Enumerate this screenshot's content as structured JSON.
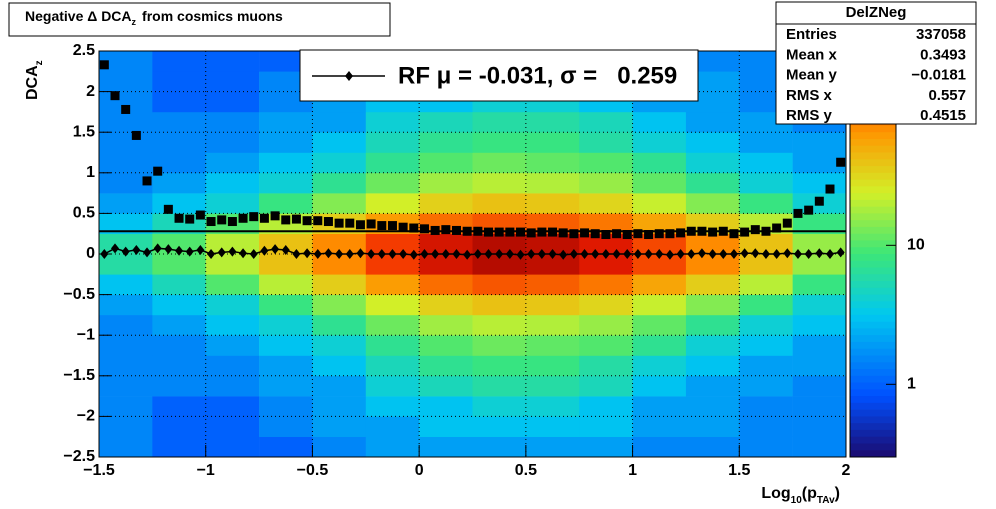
{
  "chart_data": {
    "type": "heatmap",
    "title": {
      "text": "Negative Δ DCA",
      "sub": "z",
      "rest": "from cosmics muons"
    },
    "ylabel": [
      {
        "text": "DCA"
      },
      {
        "text": "z",
        "sub": true
      }
    ],
    "xlabel": [
      {
        "text": "Log"
      },
      {
        "text": "10",
        "sub": true
      },
      {
        "text": "(p"
      },
      {
        "text": "TAv",
        "sub": true
      },
      {
        "text": ")"
      }
    ],
    "xlim": [
      -1.5,
      2
    ],
    "ylim": [
      -2.5,
      2.5
    ],
    "xticks": [
      {
        "value": -1.5,
        "label": "−1.5"
      },
      {
        "value": -1,
        "label": "−1"
      },
      {
        "value": -0.5,
        "label": "−0.5"
      },
      0,
      0.5,
      1,
      1.5,
      2
    ],
    "yticks": [
      {
        "value": -2.5,
        "label": "−2.5"
      },
      {
        "value": -2,
        "label": "−2"
      },
      {
        "value": -1.5,
        "label": "−1.5"
      },
      {
        "value": -1,
        "label": "−1"
      },
      {
        "value": -0.5,
        "label": "−0.5"
      },
      0,
      0.5,
      1,
      1.5,
      2,
      2.5
    ],
    "grid": true,
    "zlog": true,
    "zlim": [
      0.3,
      250
    ],
    "zticks": [
      1,
      10
    ],
    "xbins": [
      -1.5,
      -1.25,
      -1,
      -0.75,
      -0.5,
      -0.25,
      0,
      0.25,
      0.5,
      0.75,
      1,
      1.25,
      1.5,
      1.75,
      2
    ],
    "ybins": [
      -2.5,
      -2.25,
      -2,
      -1.75,
      -1.5,
      -1.25,
      -1,
      -0.75,
      -0.5,
      -0.25,
      0,
      0.25,
      0.5,
      0.75,
      1,
      1.25,
      1.5,
      1.75,
      2,
      2.25,
      2.5
    ],
    "z": [
      [
        1.5,
        1,
        1,
        1,
        1.5,
        2,
        2,
        2,
        2,
        2,
        1.5,
        1.5,
        1.5,
        1.5
      ],
      [
        1.5,
        1,
        1,
        1.5,
        2,
        2,
        3,
        3,
        3,
        3,
        2,
        2,
        1.5,
        1.5
      ],
      [
        1.5,
        1,
        1,
        1.5,
        2,
        3,
        3,
        4,
        4,
        3,
        2,
        2,
        1.5,
        1.5
      ],
      [
        1.5,
        1.5,
        1.5,
        2,
        2,
        4,
        5,
        6,
        6,
        5,
        3,
        2,
        2,
        1.5
      ],
      [
        1.5,
        1.5,
        1.5,
        2,
        3,
        5,
        7,
        8,
        8,
        6,
        4,
        3,
        2,
        2
      ],
      [
        1.5,
        1.5,
        2,
        3,
        4,
        7,
        10,
        12,
        11,
        10,
        7,
        4,
        3,
        2
      ],
      [
        1.5,
        2,
        3,
        4,
        7,
        12,
        17,
        20,
        19,
        16,
        11,
        7,
        4,
        3
      ],
      [
        2,
        3,
        4,
        8,
        14,
        24,
        34,
        40,
        38,
        32,
        22,
        14,
        8,
        4
      ],
      [
        3,
        5,
        10,
        20,
        35,
        60,
        85,
        100,
        95,
        80,
        55,
        35,
        20,
        8
      ],
      [
        6,
        10,
        20,
        40,
        70,
        120,
        170,
        200,
        190,
        160,
        110,
        70,
        40,
        16
      ],
      [
        6,
        10,
        20,
        40,
        70,
        120,
        170,
        200,
        190,
        160,
        110,
        70,
        40,
        16
      ],
      [
        3,
        5,
        10,
        20,
        35,
        60,
        85,
        100,
        95,
        80,
        55,
        35,
        20,
        8
      ],
      [
        2,
        3,
        4,
        8,
        14,
        24,
        34,
        40,
        38,
        32,
        22,
        14,
        8,
        4
      ],
      [
        1.5,
        2,
        3,
        4,
        7,
        12,
        17,
        20,
        19,
        16,
        11,
        7,
        4,
        3
      ],
      [
        1.5,
        1.5,
        2,
        3,
        4,
        7,
        10,
        12,
        11,
        10,
        7,
        4,
        3,
        2
      ],
      [
        1.5,
        1.5,
        1.5,
        2,
        3,
        5,
        7,
        8,
        8,
        6,
        4,
        3,
        2,
        2
      ],
      [
        1.5,
        1.5,
        1.5,
        2,
        2,
        4,
        5,
        6,
        6,
        5,
        3,
        2,
        2,
        1.5
      ],
      [
        1.5,
        1,
        1,
        1.5,
        2,
        3,
        3,
        4,
        4,
        3,
        2,
        2,
        1.5,
        1.5
      ],
      [
        1.5,
        1,
        1,
        1.5,
        2,
        2,
        3,
        3,
        3,
        3,
        2,
        2,
        1.5,
        1.5
      ],
      [
        1.5,
        1,
        1,
        1,
        1.5,
        2,
        2,
        2,
        2,
        2,
        1.5,
        1.5,
        1.5,
        1.5
      ]
    ],
    "x": [
      -1.475,
      -1.425,
      -1.375,
      -1.325,
      -1.275,
      -1.225,
      -1.175,
      -1.125,
      -1.075,
      -1.025,
      -0.975,
      -0.925,
      -0.875,
      -0.825,
      -0.775,
      -0.725,
      -0.675,
      -0.625,
      -0.575,
      -0.525,
      -0.475,
      -0.425,
      -0.375,
      -0.325,
      -0.275,
      -0.225,
      -0.175,
      -0.125,
      -0.075,
      -0.025,
      0.025,
      0.075,
      0.125,
      0.175,
      0.225,
      0.275,
      0.325,
      0.375,
      0.425,
      0.475,
      0.525,
      0.575,
      0.625,
      0.675,
      0.725,
      0.775,
      0.825,
      0.875,
      0.925,
      0.975,
      1.025,
      1.075,
      1.125,
      1.175,
      1.225,
      1.275,
      1.325,
      1.375,
      1.425,
      1.475,
      1.525,
      1.575,
      1.625,
      1.675,
      1.725,
      1.775,
      1.825,
      1.875,
      1.925,
      1.975
    ],
    "series": [
      {
        "marker": "square",
        "color": "#000000",
        "values": [
          2.33,
          1.95,
          1.78,
          1.46,
          0.9,
          1.02,
          0.55,
          0.44,
          0.43,
          0.48,
          0.4,
          0.42,
          0.4,
          0.44,
          0.46,
          0.44,
          0.47,
          0.42,
          0.43,
          0.41,
          0.41,
          0.4,
          0.38,
          0.38,
          0.36,
          0.37,
          0.35,
          0.35,
          0.33,
          0.32,
          0.31,
          0.29,
          0.3,
          0.29,
          0.28,
          0.28,
          0.27,
          0.27,
          0.27,
          0.27,
          0.26,
          0.27,
          0.27,
          0.26,
          0.25,
          0.26,
          0.25,
          0.24,
          0.25,
          0.24,
          0.25,
          0.24,
          0.25,
          0.25,
          0.26,
          0.28,
          0.28,
          0.27,
          0.28,
          0.25,
          0.27,
          0.3,
          0.28,
          0.32,
          0.38,
          0.5,
          0.54,
          0.65,
          0.8,
          1.13
        ]
      },
      {
        "name": "RF μ = -0.031, σ =   0.259",
        "marker": "diamond",
        "color": "#000000",
        "values": [
          0.0,
          0.07,
          0.03,
          0.05,
          0.02,
          0.07,
          0.06,
          0.04,
          0.03,
          0.05,
          0.0,
          0.02,
          0.03,
          0.01,
          0.0,
          0.04,
          0.06,
          0.05,
          0.0,
          0.01,
          0.0,
          0.01,
          0.0,
          0.0,
          0.01,
          0.0,
          0.0,
          0.0,
          0.0,
          -0.01,
          0.0,
          0.0,
          0.0,
          0.0,
          -0.01,
          0.0,
          0.0,
          0.0,
          0.0,
          -0.01,
          0.0,
          0.0,
          0.0,
          -0.01,
          0.0,
          0.0,
          0.0,
          0.0,
          0.0,
          0.0,
          0.0,
          0.0,
          0.0,
          -0.01,
          0.0,
          0.0,
          0.01,
          0.0,
          0.0,
          0.0,
          0.01,
          0.01,
          0.0,
          0.0,
          0.01,
          0.0,
          0.0,
          0.01,
          0.0,
          0.02
        ]
      }
    ],
    "hline": 0.28,
    "stats": {
      "title": "DelZNeg",
      "rows": [
        {
          "name": "Entries",
          "value": 337058
        },
        {
          "name": "Mean x",
          "value": 0.3493
        },
        {
          "name": "Mean y",
          "value": -0.0181,
          "label": "−0.0181"
        },
        {
          "name": "RMS x",
          "value": 0.557
        },
        {
          "name": "RMS y",
          "value": 0.4515
        }
      ]
    }
  }
}
